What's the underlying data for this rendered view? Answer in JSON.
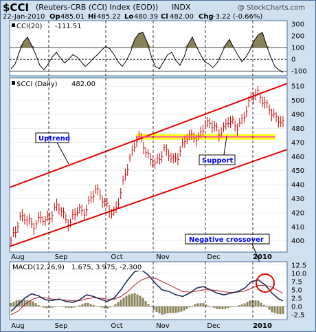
{
  "header": {
    "symbol": "$CCI",
    "name": "(Reuters-CRB (CCI) Index (EOD))",
    "exchange": "INDX",
    "watermark": "@ StockCharts.com",
    "date": "22-Jan-2010",
    "op_label": "Op",
    "op": "485.01",
    "hi_label": "Hi",
    "hi": "485.22",
    "lo_label": "Lo",
    "lo": "480.39",
    "cl_label": "Cl",
    "cl": "482.00",
    "chg_label": "Chg",
    "chg": "-3.22 (-0.66%)"
  },
  "colors": {
    "bg_outer": "#cfe0f1",
    "border": "#4e6f97",
    "price_bar": "#cc0000",
    "channel": "#e60000",
    "support_band": "#ffff00",
    "pink_line": "#ff33cc",
    "cci_fill": "#8a8358",
    "macd_line": "#1a2c5a",
    "signal_line": "#b02030",
    "histogram": "#8a8358",
    "annotation": "#0000ff"
  },
  "chart_data": [
    {
      "type": "line",
      "title": "CCI(20) -111.51",
      "legend_label": "CCI(20)",
      "legend_value": "-111.51",
      "y_ticks": [
        300,
        200,
        100,
        0,
        -100
      ],
      "ylim": [
        -140,
        330
      ],
      "x": [
        0,
        6,
        12,
        18,
        24,
        30,
        36,
        42,
        48,
        54,
        60,
        66,
        72,
        78,
        84,
        90,
        96,
        102,
        108,
        114,
        120,
        126,
        132,
        138,
        144,
        150,
        156,
        162,
        168,
        174,
        180,
        186,
        192,
        198,
        204,
        210,
        216,
        222,
        228,
        234,
        240,
        246,
        252,
        258,
        264,
        270,
        276,
        282,
        288,
        294,
        300,
        306,
        312,
        318,
        324,
        330,
        336,
        342,
        348,
        354,
        360,
        366,
        372,
        378,
        384,
        390,
        396
      ],
      "values": [
        -80,
        -40,
        60,
        150,
        190,
        120,
        40,
        -50,
        -90,
        -40,
        20,
        60,
        10,
        -30,
        0,
        40,
        20,
        -20,
        -60,
        -30,
        10,
        40,
        80,
        110,
        90,
        40,
        -20,
        -60,
        -10,
        60,
        170,
        220,
        230,
        150,
        30,
        -60,
        -80,
        -20,
        40,
        60,
        -10,
        -50,
        20,
        130,
        190,
        110,
        40,
        -20,
        -40,
        -70,
        -30,
        40,
        120,
        170,
        100,
        40,
        -20,
        20,
        80,
        160,
        210,
        230,
        120,
        20,
        -60,
        -90,
        -111
      ]
    },
    {
      "type": "bar",
      "title": "$CCI (Daily) 482.00",
      "legend_label": "$CCI (Daily)",
      "legend_value": "482.00",
      "y_ticks": [
        510,
        500,
        490,
        480,
        470,
        460,
        450,
        440,
        430,
        420,
        410,
        400
      ],
      "ylim": [
        392,
        516
      ],
      "x_labels": [
        "Aug",
        "Sep",
        "Oct",
        "Nov",
        "Dec",
        "2010"
      ],
      "close": [
        399,
        406,
        418,
        416,
        414,
        411,
        414,
        416,
        413,
        418,
        422,
        424,
        420,
        416,
        413,
        418,
        423,
        421,
        424,
        430,
        438,
        434,
        426,
        422,
        420,
        426,
        435,
        448,
        460,
        468,
        473,
        470,
        463,
        457,
        453,
        460,
        466,
        462,
        456,
        460,
        466,
        471,
        474,
        476,
        472,
        478,
        483,
        486,
        480,
        475,
        480,
        487,
        484,
        479,
        485,
        491,
        497,
        503,
        507,
        501,
        495,
        493,
        490,
        486,
        482
      ],
      "annotations": [
        {
          "label": "Uptrend"
        },
        {
          "label": "Support"
        },
        {
          "label": "Negative crossover"
        }
      ],
      "channel_upper": [
        [
          0,
          438
        ],
        [
          396,
          512
        ]
      ],
      "channel_lower": [
        [
          0,
          396
        ],
        [
          396,
          465
        ]
      ],
      "support_band": [
        472,
        476
      ]
    },
    {
      "type": "line",
      "title": "MACD(12,26,9) 1.675, 3.975, -2.300",
      "legend_label": "MACD(12,26,9)",
      "legend_value": "1.675, 3.975, -2.300",
      "y_ticks": [
        12.5,
        10.0,
        7.5,
        5.0,
        2.5,
        0.0,
        -2.5
      ],
      "ylim": [
        -4,
        13.5
      ],
      "x": [
        0,
        10,
        20,
        30,
        40,
        50,
        60,
        70,
        80,
        90,
        100,
        110,
        120,
        130,
        140,
        150,
        160,
        170,
        180,
        190,
        200,
        210,
        220,
        230,
        240,
        250,
        260,
        270,
        280,
        290,
        300,
        310,
        320,
        330,
        340,
        350,
        360,
        370,
        380,
        390,
        396
      ],
      "series": [
        {
          "name": "MACD",
          "values": [
            -1.5,
            0.5,
            2.5,
            3.8,
            3.2,
            2.0,
            1.8,
            2.2,
            1.5,
            1.2,
            2.0,
            3.5,
            3.0,
            2.2,
            1.5,
            2.5,
            5.0,
            8.0,
            10.5,
            11.0,
            9.5,
            7.0,
            5.0,
            4.5,
            3.5,
            3.0,
            4.0,
            5.5,
            6.0,
            5.0,
            4.0,
            3.5,
            4.0,
            4.5,
            5.5,
            7.5,
            8.0,
            6.5,
            4.0,
            2.2,
            1.675
          ]
        },
        {
          "name": "Signal",
          "values": [
            -2.5,
            -1.5,
            0.5,
            2.0,
            2.8,
            2.6,
            2.2,
            2.0,
            1.9,
            1.7,
            1.7,
            2.3,
            2.6,
            2.5,
            2.2,
            2.2,
            3.0,
            4.5,
            6.5,
            8.0,
            8.8,
            8.5,
            7.5,
            6.5,
            5.5,
            4.5,
            4.3,
            4.6,
            5.0,
            5.0,
            4.8,
            4.4,
            4.2,
            4.3,
            4.6,
            5.5,
            6.3,
            6.4,
            5.8,
            4.6,
            3.975
          ]
        }
      ]
    }
  ]
}
